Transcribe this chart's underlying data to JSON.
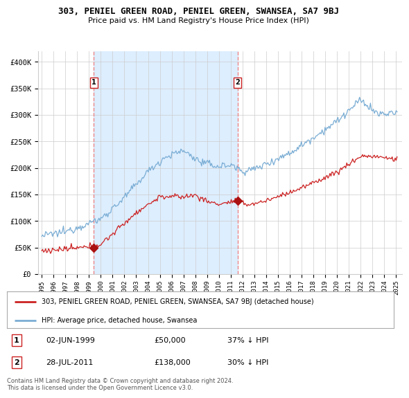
{
  "title": "303, PENIEL GREEN ROAD, PENIEL GREEN, SWANSEA, SA7 9BJ",
  "subtitle": "Price paid vs. HM Land Registry's House Price Index (HPI)",
  "ylabel_ticks": [
    "£0",
    "£50K",
    "£100K",
    "£150K",
    "£200K",
    "£250K",
    "£300K",
    "£350K",
    "£400K"
  ],
  "ytick_values": [
    0,
    50000,
    100000,
    150000,
    200000,
    250000,
    300000,
    350000,
    400000
  ],
  "ylim": [
    0,
    420000
  ],
  "xlim_start": 1994.7,
  "xlim_end": 2025.5,
  "sale1": {
    "date_num": 1999.42,
    "price": 50000,
    "label": "1"
  },
  "sale2": {
    "date_num": 2011.57,
    "price": 138000,
    "label": "2"
  },
  "vline1_x": 1999.42,
  "vline2_x": 2011.57,
  "hpi_color": "#7aadd4",
  "price_color": "#cc2222",
  "vline_color": "#ee8888",
  "marker_color": "#aa1111",
  "shade_color": "#ddeeff",
  "background_color": "#ffffff",
  "grid_color": "#cccccc",
  "legend_label_price": "303, PENIEL GREEN ROAD, PENIEL GREEN, SWANSEA, SA7 9BJ (detached house)",
  "legend_label_hpi": "HPI: Average price, detached house, Swansea",
  "table_row1": [
    "1",
    "02-JUN-1999",
    "£50,000",
    "37% ↓ HPI"
  ],
  "table_row2": [
    "2",
    "28-JUL-2011",
    "£138,000",
    "30% ↓ HPI"
  ],
  "footer": "Contains HM Land Registry data © Crown copyright and database right 2024.\nThis data is licensed under the Open Government Licence v3.0.",
  "title_fontsize": 9,
  "subtitle_fontsize": 8,
  "tick_fontsize": 7.5
}
